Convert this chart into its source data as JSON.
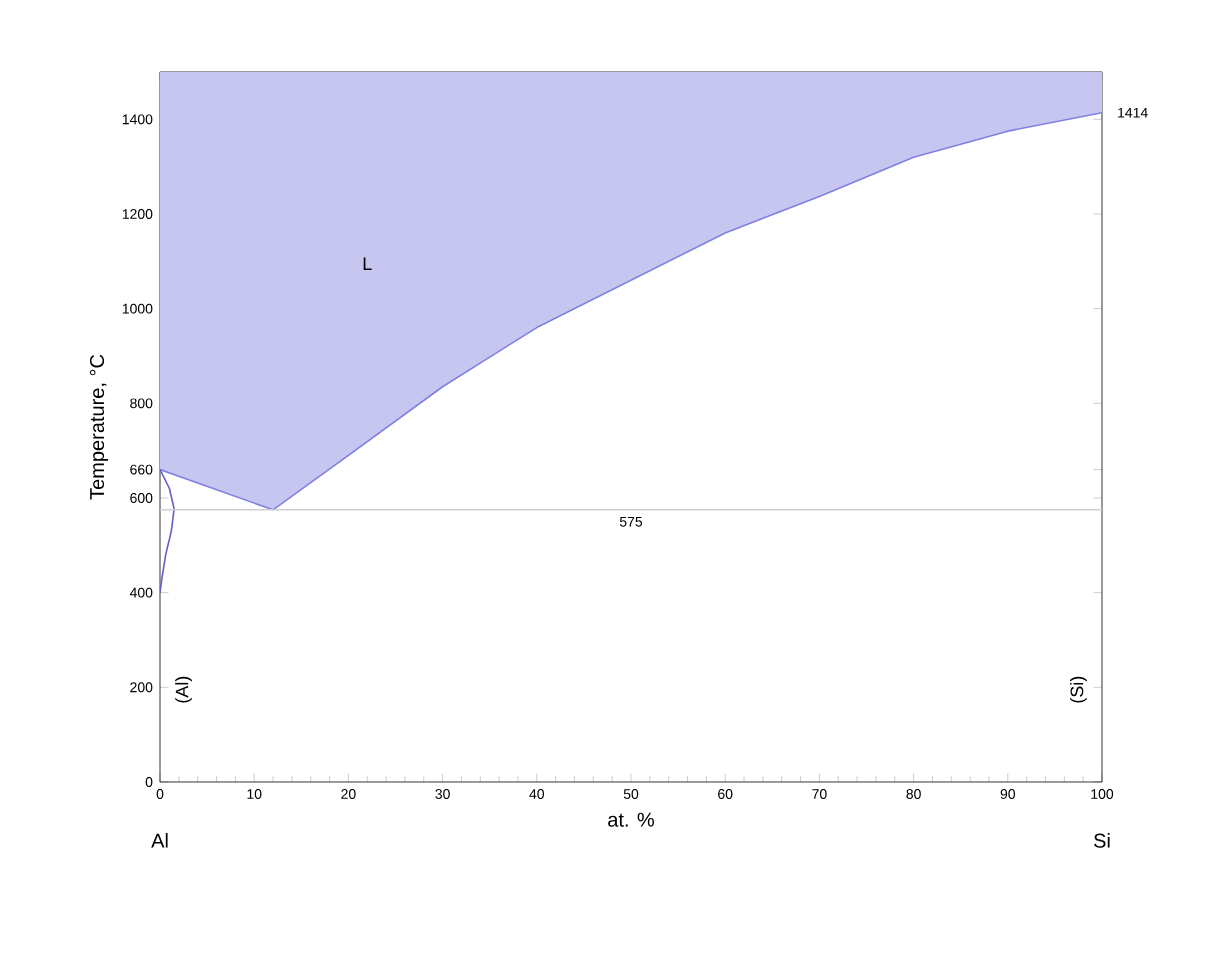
{
  "chart_data": {
    "type": "line",
    "xlabel": "at. %",
    "ylabel": "Temperature, °C",
    "xlim": [
      0,
      100
    ],
    "ylim": [
      0,
      1500
    ],
    "xticks": [
      0,
      10,
      20,
      30,
      40,
      50,
      60,
      70,
      80,
      90,
      100
    ],
    "yticks": [
      0,
      200,
      400,
      600,
      660,
      800,
      1000,
      1200,
      1400
    ],
    "series": [
      {
        "color": "#8080e0",
        "x": [
          0,
          12,
          20,
          30,
          40,
          50,
          60,
          70,
          80,
          90,
          100
        ],
        "values": [
          660,
          575,
          690,
          835,
          960,
          1060,
          1160,
          1237,
          1320,
          1375,
          1414
        ],
        "lower": [
          660,
          575,
          690,
          835,
          960,
          1060,
          1160,
          1237,
          1320,
          1375,
          1414
        ],
        "upper": [
          1500,
          1500,
          1500,
          1500,
          1500,
          1500,
          1500,
          1500,
          1500,
          1500,
          1500
        ]
      },
      {
        "color": "#6060c8",
        "x": [
          0,
          1.0,
          1.5,
          1.2,
          0.6,
          0.2,
          0
        ],
        "values": [
          660,
          620,
          577,
          530,
          480,
          430,
          400
        ]
      }
    ],
    "ref_lines": [
      {
        "axis": "y",
        "value": 575,
        "label": "575",
        "color": "#d0d0d0"
      }
    ],
    "annotations": [
      "Al",
      "Si",
      "L",
      "(Al)",
      "(Si)",
      {
        "text": "1414",
        "x": 100,
        "y": 1414
      }
    ],
    "grid": false
  }
}
